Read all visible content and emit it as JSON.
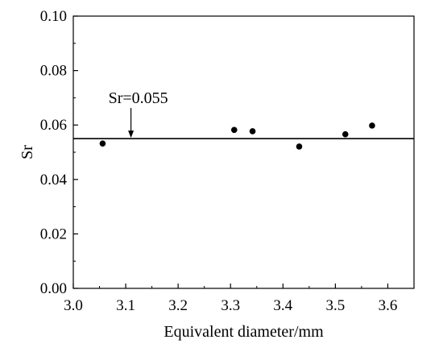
{
  "chart_data": {
    "type": "scatter",
    "title": "",
    "xlabel": "Equivalent diameter/mm",
    "ylabel": "Sr",
    "xlim": [
      3.0,
      3.65
    ],
    "ylim": [
      0.0,
      0.1
    ],
    "x_ticks": [
      "3.0",
      "3.1",
      "3.2",
      "3.3",
      "3.4",
      "3.5",
      "3.6"
    ],
    "y_ticks": [
      "0.00",
      "0.02",
      "0.04",
      "0.06",
      "0.08",
      "0.10"
    ],
    "grid": false,
    "series": [
      {
        "points": [
          {
            "x": 3.056,
            "y": 0.0532
          },
          {
            "x": 3.307,
            "y": 0.0582
          },
          {
            "x": 3.342,
            "y": 0.0577
          },
          {
            "x": 3.431,
            "y": 0.0521
          },
          {
            "x": 3.519,
            "y": 0.0566
          },
          {
            "x": 3.57,
            "y": 0.0598
          }
        ]
      }
    ],
    "reference_line": {
      "y": 0.055
    },
    "annotation": {
      "text": "Sr=0.055",
      "x": 3.11
    }
  }
}
